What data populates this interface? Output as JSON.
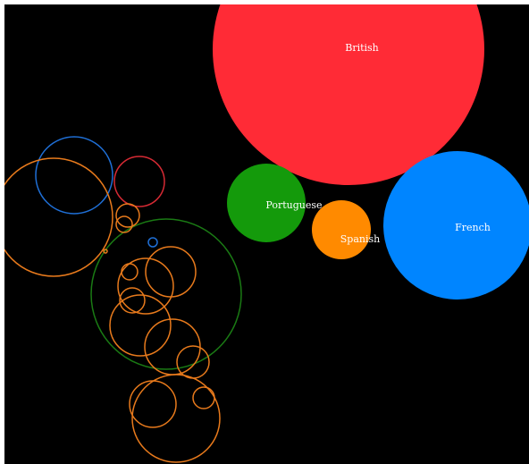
{
  "chart_data": {
    "type": "bubble",
    "filled_bubbles": [
      {
        "label": "British",
        "color": "#ff2b36"
      },
      {
        "label": "Portuguese",
        "color": "#149a0b"
      },
      {
        "label": "Spanish",
        "color": "#ff8a00"
      },
      {
        "label": "French",
        "color": "#0085ff"
      }
    ],
    "outline_series": [
      {
        "color": "#1f6fd6",
        "count": 2
      },
      {
        "color": "#d62a34",
        "count": 1
      },
      {
        "color": "#1a7a14",
        "count": 1
      },
      {
        "color": "#e87a1c",
        "count": 14
      }
    ],
    "legend": "none",
    "grid": false
  }
}
